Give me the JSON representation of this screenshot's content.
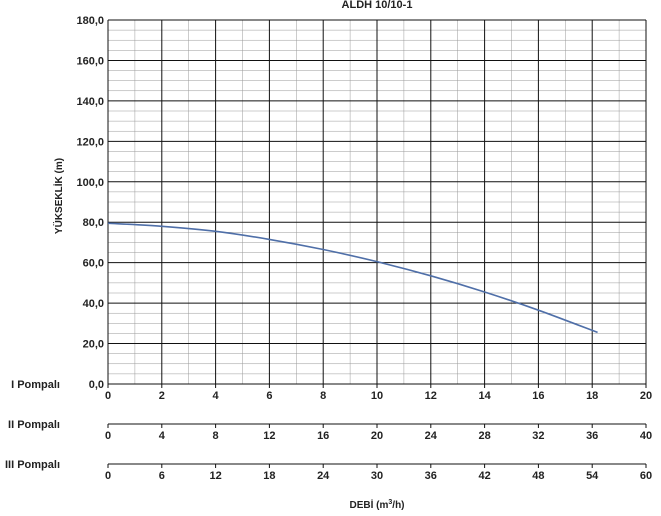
{
  "chart_data": {
    "type": "line",
    "title": "ALDH 10/10-1",
    "ylabel": "YÜKSEKLİK (m)",
    "xlabel_text": "DEBİ (m",
    "xlabel_sup": "3",
    "xlabel_end": "/h)",
    "ylim": [
      0,
      180
    ],
    "y_ticks": [
      "0,0",
      "20,0",
      "40,0",
      "60,0",
      "80,0",
      "100,0",
      "120,0",
      "140,0",
      "160,0",
      "180,0"
    ],
    "xlim": [
      0,
      20
    ],
    "grid": true,
    "x_axes": [
      {
        "name": "I Pompalı",
        "ticks": [
          "0",
          "2",
          "4",
          "6",
          "8",
          "10",
          "12",
          "14",
          "16",
          "18",
          "20"
        ]
      },
      {
        "name": "II Pompalı",
        "ticks": [
          "0",
          "4",
          "8",
          "12",
          "16",
          "20",
          "24",
          "28",
          "32",
          "36",
          "40"
        ]
      },
      {
        "name": "III Pompalı",
        "ticks": [
          "0",
          "6",
          "12",
          "18",
          "24",
          "30",
          "36",
          "42",
          "48",
          "54",
          "60"
        ]
      }
    ],
    "series": [
      {
        "color": "#4f6fa8",
        "x": [
          0,
          2,
          4,
          6,
          8,
          10,
          12,
          14,
          16,
          18.2
        ],
        "y": [
          79.5,
          78,
          75.5,
          71.5,
          66.5,
          60.5,
          53.5,
          45.5,
          36.5,
          25.5
        ]
      }
    ]
  }
}
